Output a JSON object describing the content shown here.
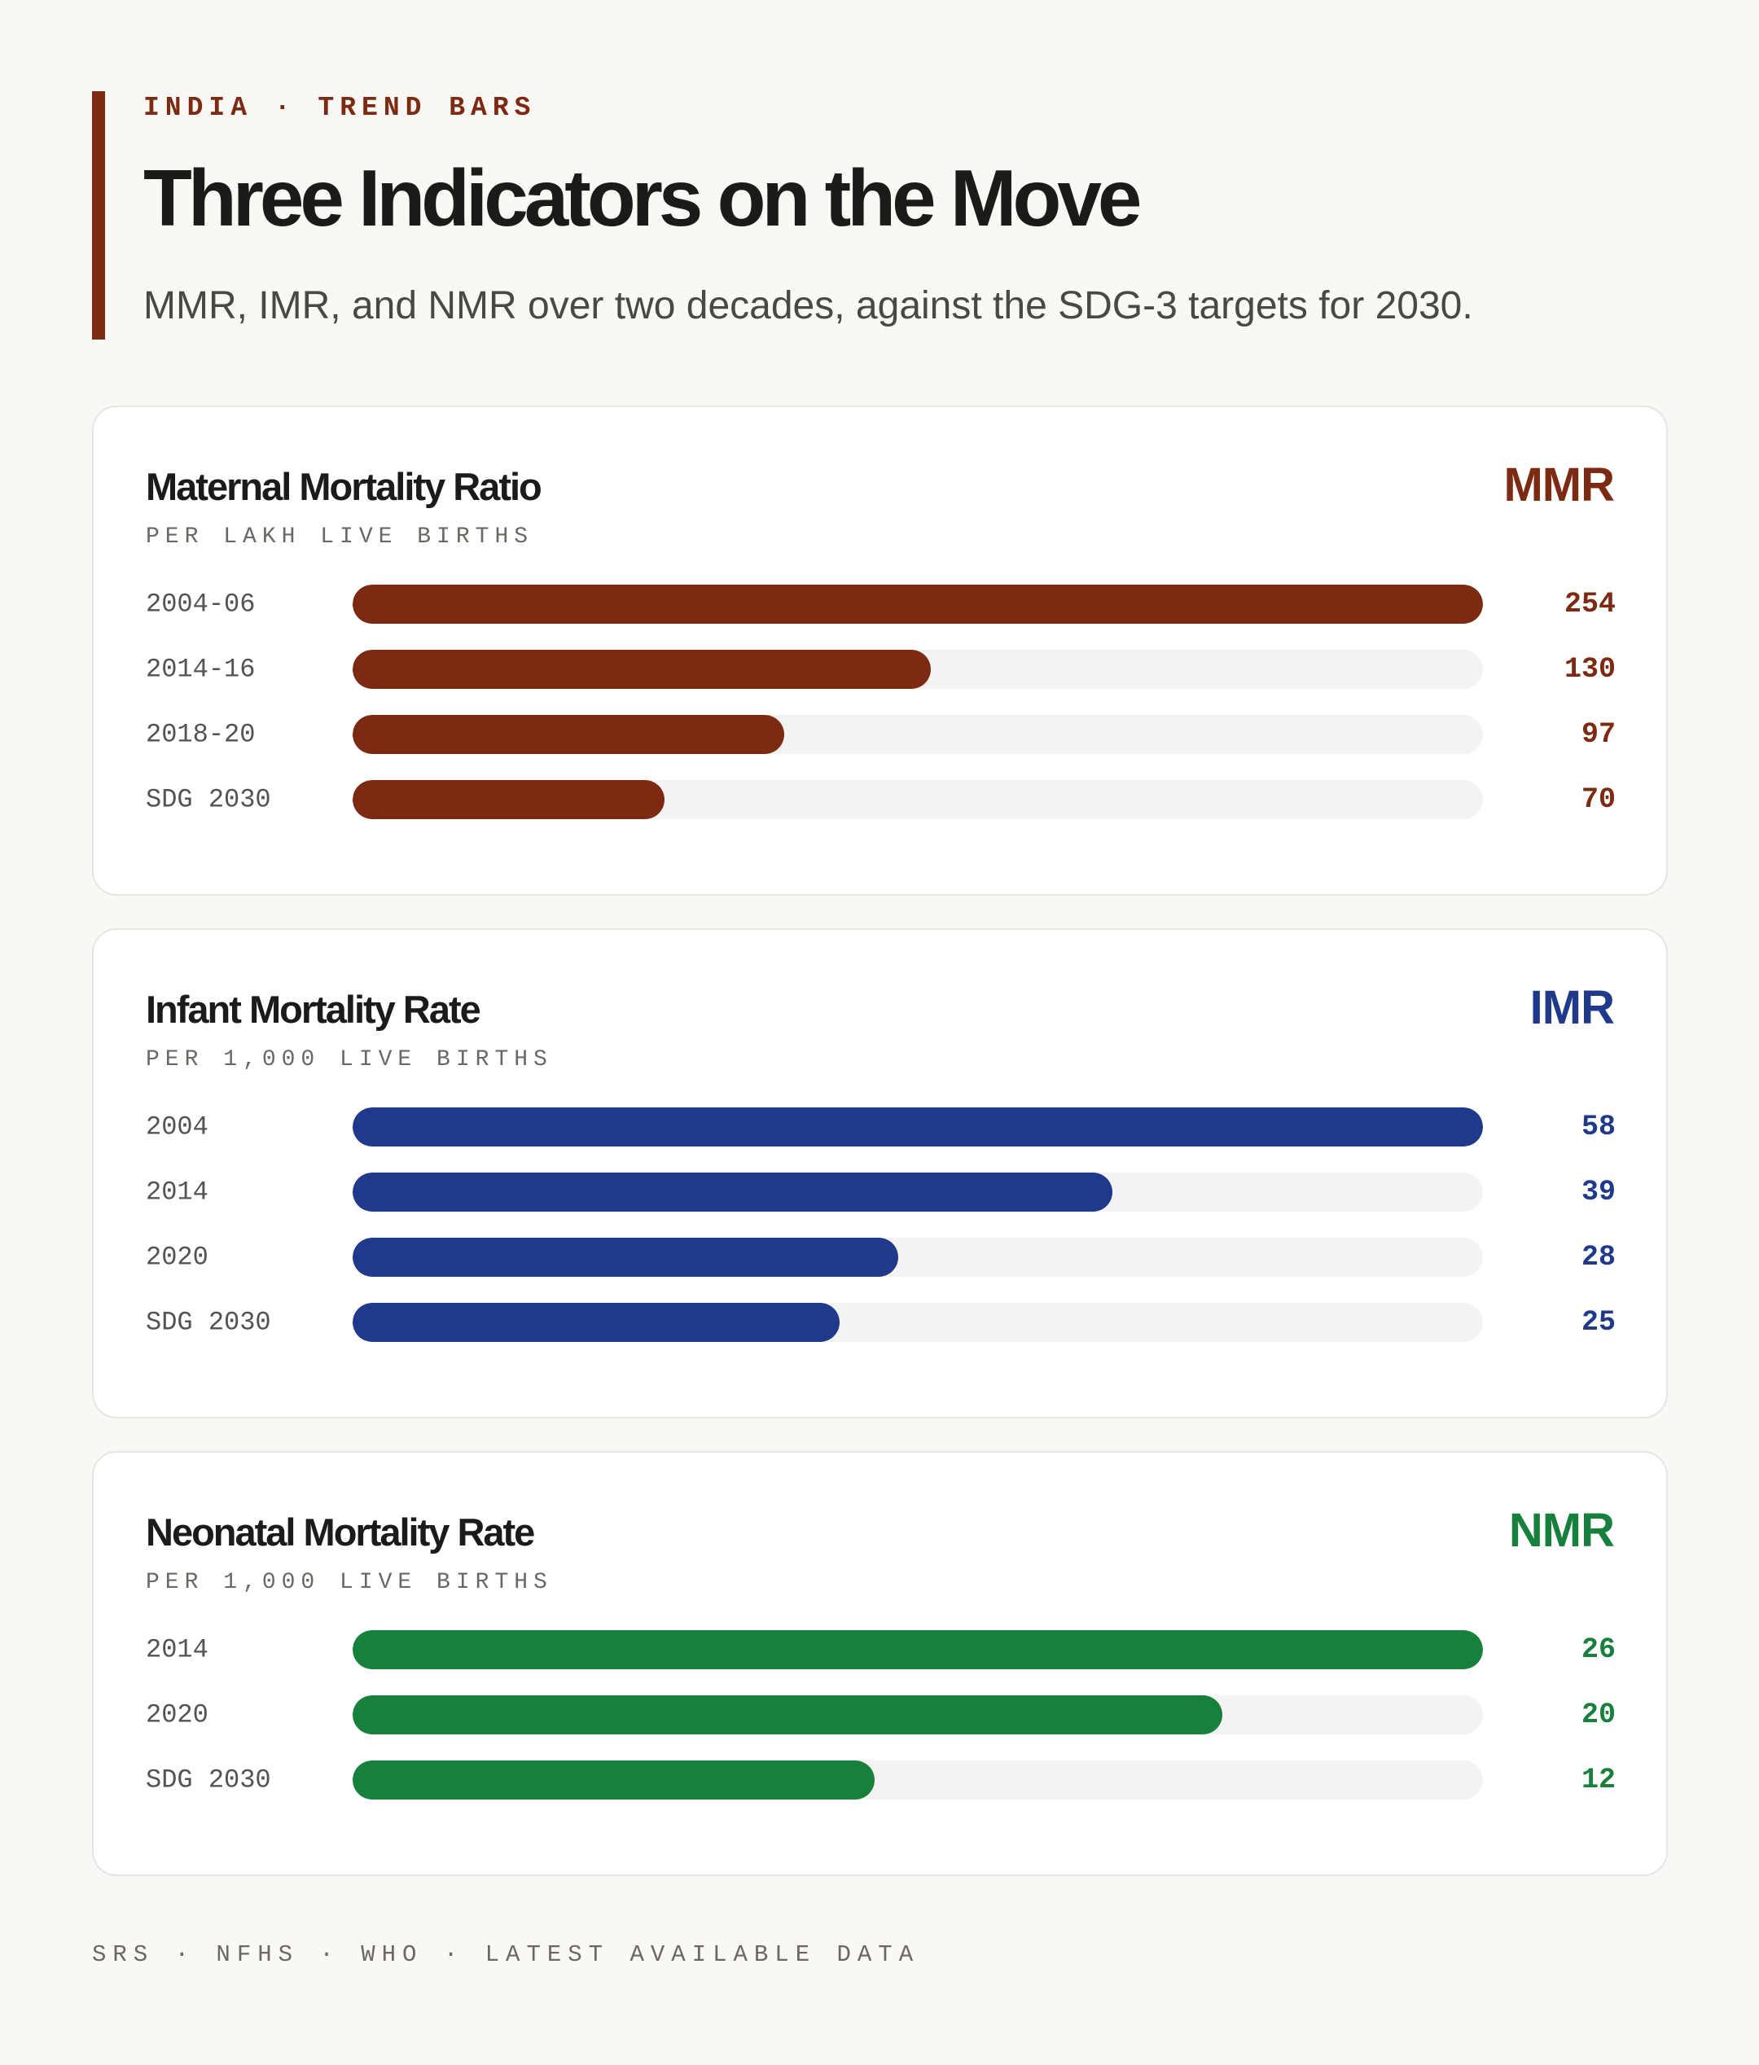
{
  "header": {
    "kicker": "INDIA · TREND BARS",
    "title": "Three Indicators on the Move",
    "subtitle": "MMR, IMR, and NMR over two decades, against the SDG-3 targets for 2030."
  },
  "colors": {
    "accent": "#7d2a13",
    "mmr": "#7d2a13",
    "imr": "#1f3a8a",
    "nmr": "#17803d",
    "track": "#f4f3f1"
  },
  "chart_data": [
    {
      "type": "bar",
      "orientation": "horizontal",
      "title": "Maternal Mortality Ratio",
      "abbr": "MMR",
      "unit": "PER LAKH LIVE BIRTHS",
      "color": "#7d2a13",
      "categories": [
        "2004-06",
        "2014-16",
        "2018-20",
        "SDG 2030"
      ],
      "values": [
        254,
        130,
        97,
        70
      ],
      "value_labels": [
        "254",
        "130",
        "97",
        "70"
      ],
      "xlim": [
        0,
        254
      ]
    },
    {
      "type": "bar",
      "orientation": "horizontal",
      "title": "Infant Mortality Rate",
      "abbr": "IMR",
      "unit": "PER 1,000 LIVE BIRTHS",
      "color": "#1f3a8a",
      "categories": [
        "2004",
        "2014",
        "2020",
        "SDG 2030"
      ],
      "values": [
        58,
        39,
        28,
        25
      ],
      "value_labels": [
        "58",
        "39",
        "28",
        "25"
      ],
      "xlim": [
        0,
        58
      ]
    },
    {
      "type": "bar",
      "orientation": "horizontal",
      "title": "Neonatal Mortality Rate",
      "abbr": "NMR",
      "unit": "PER 1,000 LIVE BIRTHS",
      "color": "#17803d",
      "categories": [
        "2014",
        "2020",
        "SDG 2030"
      ],
      "values": [
        26,
        20,
        12
      ],
      "value_labels": [
        "26",
        "20",
        "12"
      ],
      "xlim": [
        0,
        26
      ]
    }
  ],
  "footer": {
    "source": "SRS · NFHS · WHO · LATEST AVAILABLE DATA"
  }
}
